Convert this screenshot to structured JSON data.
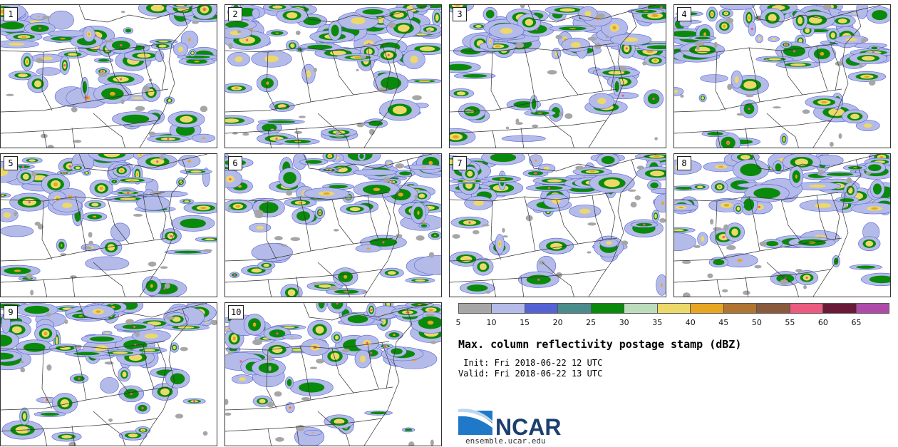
{
  "panels": [
    {
      "label": "1"
    },
    {
      "label": "2"
    },
    {
      "label": "3"
    },
    {
      "label": "4"
    },
    {
      "label": "5"
    },
    {
      "label": "6"
    },
    {
      "label": "7"
    },
    {
      "label": "8"
    },
    {
      "label": "9"
    },
    {
      "label": "10"
    }
  ],
  "legend": {
    "colors": [
      "#a6a6a6",
      "#b4bbe8",
      "#5562d6",
      "#4a8c8c",
      "#0a8a0a",
      "#bcdcbc",
      "#ecd96a",
      "#e8a51f",
      "#b07530",
      "#8a5a3c",
      "#ec5a80",
      "#6a1a36",
      "#b04aa8"
    ],
    "ticks": [
      "5",
      "10",
      "15",
      "20",
      "25",
      "30",
      "35",
      "40",
      "45",
      "50",
      "55",
      "60",
      "65"
    ]
  },
  "title": "Max. column reflectivity postage stamp (dBZ)",
  "init_line": " Init: Fri 2018-06-22 12 UTC",
  "valid_line": "Valid: Fri 2018-06-22 13 UTC",
  "logo_text": "NCAR",
  "url": "ensemble.ucar.edu"
}
